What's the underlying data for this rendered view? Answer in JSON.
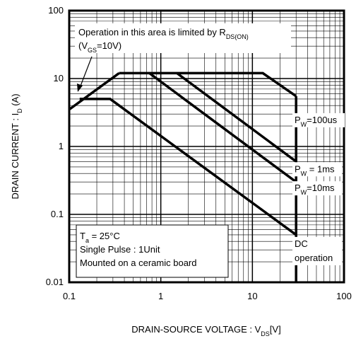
{
  "chart_data": {
    "type": "line",
    "xlog": true,
    "ylog": true,
    "grid": true,
    "xlim": [
      0.1,
      100
    ],
    "ylim": [
      0.01,
      100
    ],
    "xticks": [
      0.1,
      1,
      10,
      100
    ],
    "yticks": [
      0.01,
      0.1,
      1,
      10,
      100
    ],
    "x_label": {
      "main": "DRAIN-SOURCE VOLTAGE : V",
      "sub": "DS",
      "rest": "[V]"
    },
    "y_label": {
      "main": "DRAIN CURRENT : I",
      "sub": "D",
      "rest": " (A)"
    },
    "color": "#000000",
    "series": [
      {
        "x": [
          0.1,
          0.35
        ],
        "values": [
          3.5,
          12
        ]
      },
      {
        "x": [
          0.35,
          13,
          30
        ],
        "values": [
          12,
          12,
          5.5
        ]
      },
      {
        "x": [
          1.5,
          30
        ],
        "values": [
          12,
          0.6
        ]
      },
      {
        "x": [
          0.75,
          30
        ],
        "values": [
          12,
          0.3
        ]
      },
      {
        "x": [
          0.13,
          0.28,
          30
        ],
        "values": [
          5,
          5,
          0.05
        ]
      },
      {
        "x": [
          30,
          30
        ],
        "values": [
          0.01,
          5.5
        ]
      }
    ],
    "curve_labels": [
      {
        "main": "P",
        "sub": "W",
        "rest": "=100us"
      },
      {
        "main": "P",
        "sub": "W",
        "rest": " = 1ms"
      },
      {
        "main": "P",
        "sub": "W",
        "rest": "=10ms"
      },
      {
        "main": "DC",
        "sub": "",
        "rest": "operation"
      }
    ],
    "limit_note": {
      "line1": "Operation in this area is limited by R",
      "sub1": "DS(ON)",
      "line2a": "(V",
      "sub2": "GS",
      "line2b": "=10V)"
    },
    "conditions": {
      "t_main": "T",
      "t_sub": "a",
      "t_rest": " = 25°C",
      "line2": "Single Pulse : 1Unit",
      "line3": "Mounted on a ceramic board"
    }
  }
}
